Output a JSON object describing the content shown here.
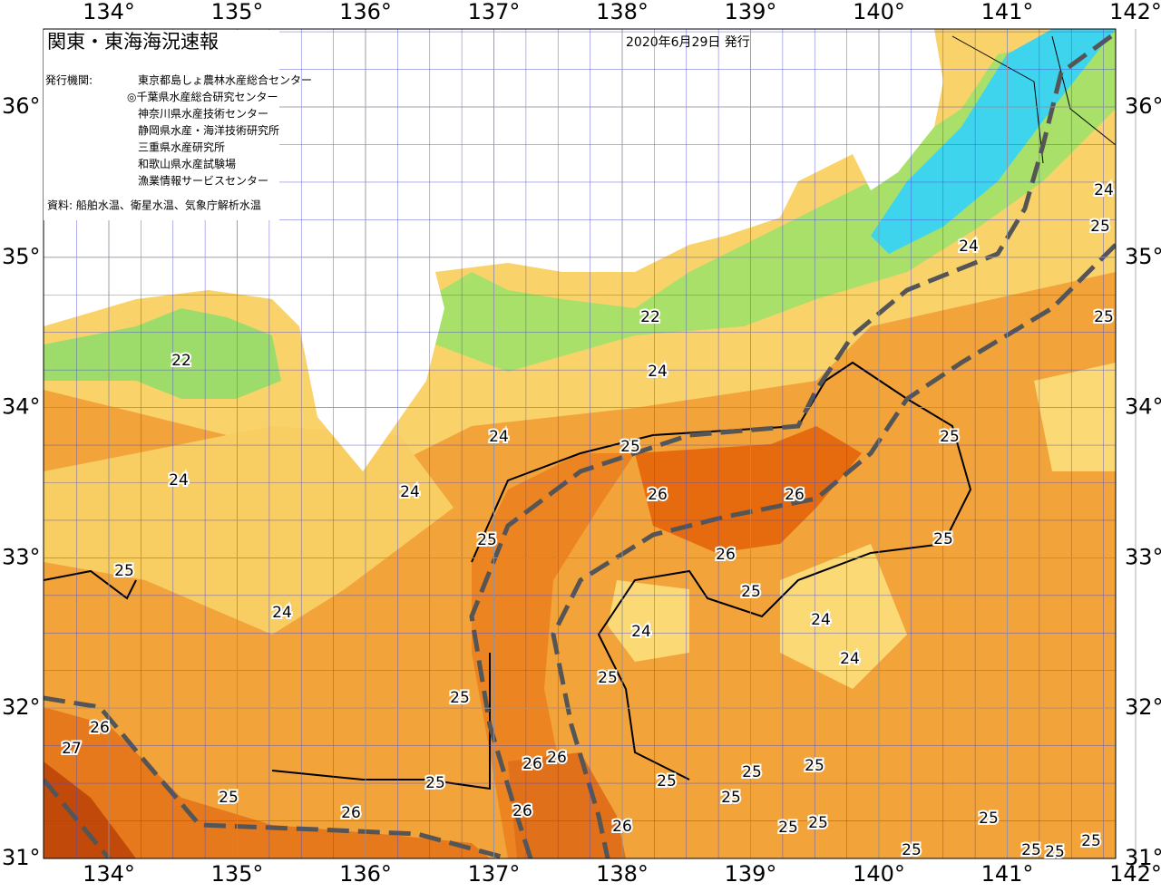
{
  "header": {
    "title": "関東・東海海況速報",
    "date": "2020年6月29日 発行",
    "issuer_label": "発行機関:",
    "issuers": [
      "東京都島しょ農林水産総合センター",
      "◎千葉県水産総合研究センター",
      "神奈川県水産技術センター",
      "静岡県水産・海洋技術研究所",
      "三重県水産研究所",
      "和歌山県水産試験場",
      "漁業情報サービスセンター"
    ],
    "source": "資料: 船舶水温、衛星水温、気象庁解析水温"
  },
  "map": {
    "lon_ticks": [
      {
        "value": 134,
        "label": "134°"
      },
      {
        "value": 135,
        "label": "135°"
      },
      {
        "value": 136,
        "label": "136°"
      },
      {
        "value": 137,
        "label": "137°"
      },
      {
        "value": 138,
        "label": "138°"
      },
      {
        "value": 139,
        "label": "139°"
      },
      {
        "value": 140,
        "label": "140°"
      },
      {
        "value": 141,
        "label": "141°"
      },
      {
        "value": 142,
        "label": "142°"
      }
    ],
    "lat_ticks": [
      {
        "value": 36,
        "label": "36°"
      },
      {
        "value": 35,
        "label": "35°"
      },
      {
        "value": 34,
        "label": "34°"
      },
      {
        "value": 33,
        "label": "33°"
      },
      {
        "value": 32,
        "label": "32°"
      },
      {
        "value": 31,
        "label": "31°"
      }
    ],
    "contour_labels": [
      22,
      22,
      24,
      24,
      24,
      24,
      24,
      24,
      24,
      25,
      25,
      25,
      26,
      26,
      25,
      25,
      26,
      25,
      25,
      25,
      24,
      24,
      24,
      25,
      25,
      26,
      27,
      26,
      26,
      25,
      25,
      25,
      25,
      25,
      25,
      26,
      26,
      26,
      25,
      25,
      25,
      25,
      25,
      25,
      25
    ]
  }
}
